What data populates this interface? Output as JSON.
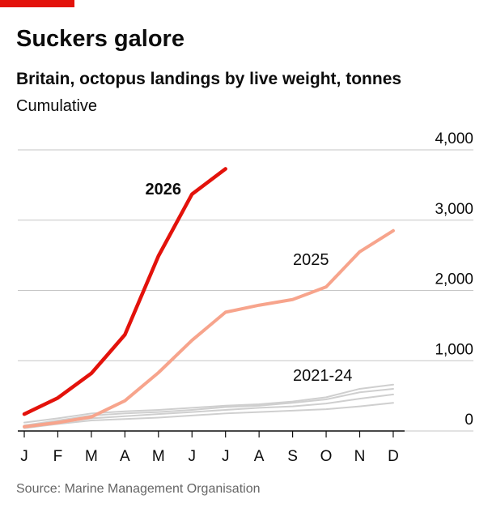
{
  "chart_data": {
    "type": "line",
    "title": "Suckers galore",
    "subtitle": "Britain, octopus landings by live weight, tonnes",
    "note": "Cumulative",
    "source": "Source: Marine Management Organisation",
    "categories": [
      "J",
      "F",
      "M",
      "A",
      "M",
      "J",
      "J",
      "A",
      "S",
      "O",
      "N",
      "D"
    ],
    "ylim": [
      0,
      4000
    ],
    "yticks": [
      0,
      {
        "value": 1000,
        "label": "1,000"
      },
      {
        "value": 2000,
        "label": "2,000"
      },
      {
        "value": 3000,
        "label": "3,000"
      },
      {
        "value": 4000,
        "label": "4,000"
      }
    ],
    "grid": true,
    "series": [
      {
        "name": "2021-24",
        "color": "#cfcfcf",
        "values": [
          [
            120,
            180,
            250,
            280,
            300,
            330,
            360,
            380,
            420,
            480,
            600,
            660
          ],
          [
            80,
            150,
            220,
            250,
            270,
            300,
            340,
            360,
            400,
            450,
            550,
            600
          ],
          [
            60,
            120,
            180,
            210,
            240,
            270,
            300,
            330,
            350,
            390,
            460,
            520
          ],
          [
            40,
            100,
            150,
            170,
            190,
            220,
            250,
            270,
            290,
            310,
            350,
            400
          ]
        ]
      },
      {
        "name": "2025",
        "color": "#f7a48c",
        "values": [
          60,
          120,
          200,
          430,
          830,
          1290,
          1690,
          1790,
          1870,
          2050,
          2550,
          2850
        ]
      },
      {
        "name": "2026",
        "color": "#e3120b",
        "values": [
          240,
          470,
          820,
          1370,
          2490,
          3370,
          3730,
          null,
          null,
          null,
          null,
          null
        ]
      }
    ]
  }
}
